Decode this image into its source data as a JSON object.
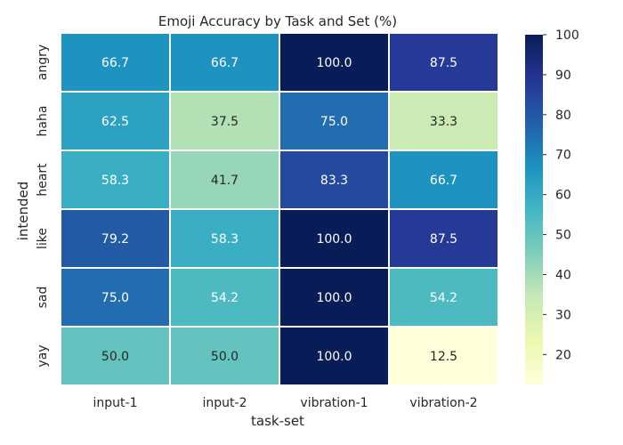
{
  "chart_data": {
    "type": "heatmap",
    "title": "Emoji Accuracy by Task and Set (%)",
    "xlabel": "task-set",
    "ylabel": "intended",
    "x_categories": [
      "input-1",
      "input-2",
      "vibration-1",
      "vibration-2"
    ],
    "y_categories": [
      "angry",
      "haha",
      "heart",
      "like",
      "sad",
      "yay"
    ],
    "values": [
      [
        66.7,
        66.7,
        100.0,
        87.5
      ],
      [
        62.5,
        37.5,
        75.0,
        33.3
      ],
      [
        58.3,
        41.7,
        83.3,
        66.7
      ],
      [
        79.2,
        58.3,
        100.0,
        87.5
      ],
      [
        75.0,
        54.2,
        100.0,
        54.2
      ],
      [
        50.0,
        50.0,
        100.0,
        12.5
      ]
    ],
    "colorbar": {
      "min": 12.5,
      "max": 100,
      "ticks": [
        20,
        30,
        40,
        50,
        60,
        70,
        80,
        90,
        100
      ],
      "colormap": "YlGnBu"
    },
    "grid": false,
    "legend": "colorbar-right"
  }
}
